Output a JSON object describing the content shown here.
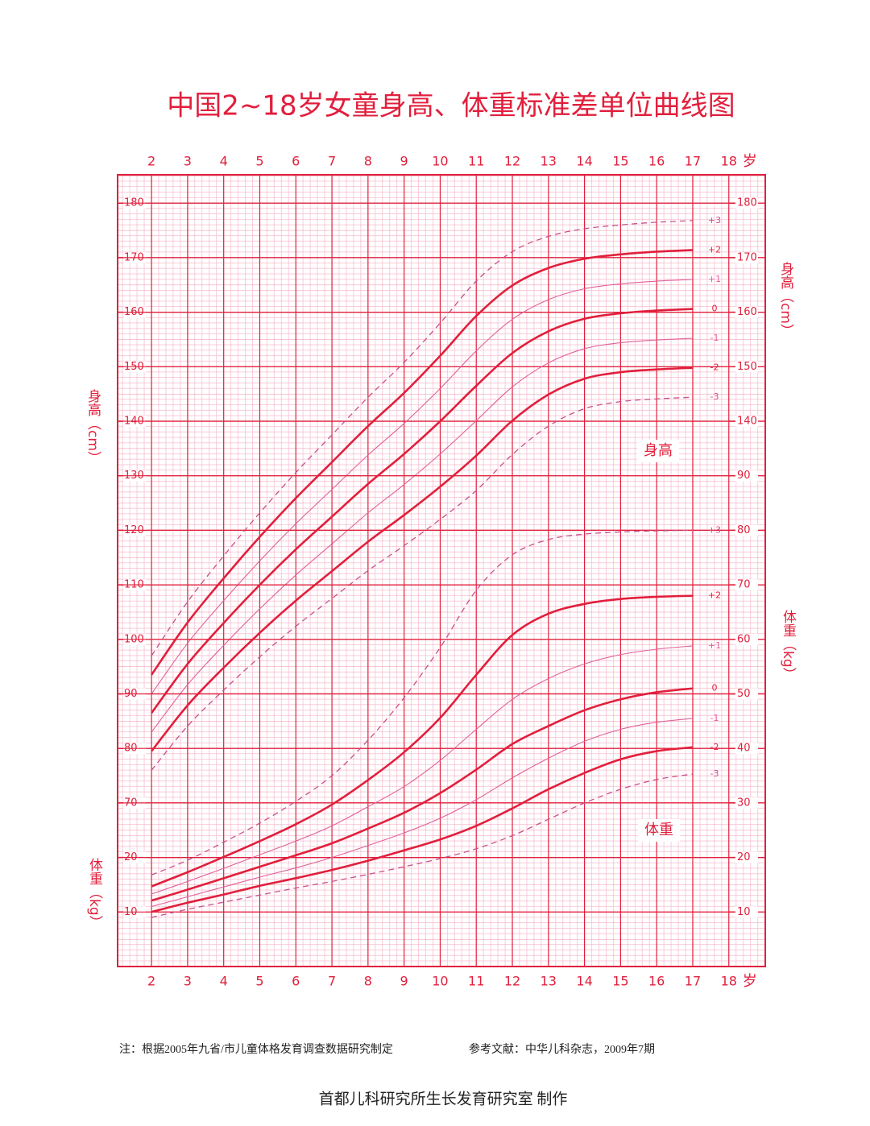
{
  "chart_data": [
    {
      "type": "line",
      "title": "中国2~18岁女童身高、体重标准差单位曲线图",
      "ylabel": "身高（cm）",
      "xlabel": "岁",
      "annotation": "身高",
      "xlim": [
        1.06,
        19.01
      ],
      "xticks": [
        2,
        3,
        4,
        5,
        6,
        7,
        8,
        9,
        10,
        11,
        12,
        13,
        14,
        15,
        16,
        17,
        18
      ],
      "ylim": [
        40,
        185.2
      ],
      "yticks": [
        70,
        80,
        90,
        100,
        110,
        120,
        130,
        140,
        150,
        160,
        170,
        180
      ],
      "yticks_right": [
        140,
        150,
        160,
        170,
        180
      ],
      "grid": true,
      "x": [
        2,
        3,
        4,
        5,
        6,
        7,
        8,
        9,
        10,
        11,
        12,
        13,
        14,
        15,
        16,
        17
      ],
      "series": [
        {
          "name": "+3",
          "color": "#c8508c",
          "style": "dashed",
          "values": [
            97.0,
            106.9,
            115.3,
            123.2,
            130.6,
            137.5,
            144.4,
            150.8,
            158.0,
            165.7,
            171.1,
            173.9,
            175.3,
            176.0,
            176.5,
            176.8
          ]
        },
        {
          "name": "+2",
          "color": "#e11f3c",
          "style": "thick",
          "values": [
            93.5,
            103.1,
            111.2,
            118.8,
            125.9,
            132.5,
            139.1,
            145.2,
            152.0,
            159.3,
            164.9,
            168.1,
            169.8,
            170.6,
            171.1,
            171.4
          ]
        },
        {
          "name": "+1",
          "color": "#e0609a",
          "style": "thin",
          "values": [
            90.0,
            99.3,
            107.1,
            114.4,
            121.2,
            127.5,
            133.8,
            139.6,
            146.0,
            152.9,
            158.7,
            162.3,
            164.3,
            165.2,
            165.7,
            166.0
          ]
        },
        {
          "name": "0",
          "color": "#e11f3c",
          "style": "thick",
          "values": [
            86.5,
            95.5,
            103.0,
            110.0,
            116.5,
            122.5,
            128.5,
            134.0,
            140.0,
            146.5,
            152.5,
            156.5,
            158.8,
            159.8,
            160.3,
            160.6
          ]
        },
        {
          "name": "-1",
          "color": "#e0609a",
          "style": "thin",
          "values": [
            83.0,
            91.7,
            98.9,
            105.6,
            111.8,
            117.5,
            123.2,
            128.4,
            134.0,
            140.1,
            146.3,
            150.7,
            153.3,
            154.4,
            154.9,
            155.2
          ]
        },
        {
          "name": "-2",
          "color": "#e11f3c",
          "style": "thick",
          "values": [
            79.5,
            87.9,
            94.8,
            101.2,
            107.1,
            112.5,
            117.9,
            122.8,
            128.0,
            133.7,
            140.1,
            144.9,
            147.8,
            149.0,
            149.5,
            149.8
          ]
        },
        {
          "name": "-3",
          "color": "#c8508c",
          "style": "dashed",
          "values": [
            76.0,
            84.1,
            90.7,
            96.8,
            102.4,
            107.5,
            112.6,
            117.2,
            122.0,
            127.3,
            133.9,
            139.1,
            142.3,
            143.6,
            144.1,
            144.4
          ]
        }
      ]
    },
    {
      "type": "line",
      "ylabel": "体重（kg）",
      "annotation": "体重",
      "xlim": [
        1.06,
        19.01
      ],
      "ylim": [
        0,
        145.2
      ],
      "yticks": [
        10,
        20
      ],
      "yticks_right": [
        10,
        20,
        30,
        40,
        50,
        60,
        70,
        80,
        90
      ],
      "grid": true,
      "x": [
        2,
        3,
        4,
        5,
        6,
        7,
        8,
        9,
        10,
        11,
        12,
        13,
        14,
        15,
        16,
        17
      ],
      "series": [
        {
          "name": "+3",
          "color": "#c8508c",
          "style": "dashed",
          "values": [
            16.8,
            19.5,
            22.8,
            26.3,
            30.3,
            35.0,
            41.5,
            49.3,
            58.5,
            69.0,
            75.5,
            78.3,
            79.3,
            79.7,
            79.9,
            80.0
          ]
        },
        {
          "name": "+2",
          "color": "#e11f3c",
          "style": "thick",
          "values": [
            14.7,
            17.3,
            20.1,
            23.0,
            26.1,
            29.7,
            34.2,
            39.3,
            45.6,
            53.5,
            60.8,
            64.7,
            66.5,
            67.4,
            67.8,
            68.0
          ]
        },
        {
          "name": "+1",
          "color": "#e0609a",
          "style": "thin",
          "values": [
            13.3,
            15.6,
            18.0,
            20.5,
            23.0,
            25.8,
            29.3,
            33.0,
            37.8,
            43.5,
            49.0,
            52.8,
            55.5,
            57.2,
            58.2,
            58.8
          ]
        },
        {
          "name": "0",
          "color": "#e11f3c",
          "style": "thick",
          "values": [
            12.1,
            14.1,
            16.2,
            18.3,
            20.4,
            22.6,
            25.3,
            28.2,
            31.8,
            36.1,
            40.8,
            44.1,
            47.0,
            49.0,
            50.3,
            51.0
          ]
        },
        {
          "name": "-1",
          "color": "#e0609a",
          "style": "thin",
          "values": [
            11.0,
            12.8,
            14.6,
            16.4,
            18.1,
            20.0,
            22.2,
            24.5,
            27.2,
            30.6,
            34.6,
            38.2,
            41.3,
            43.5,
            44.8,
            45.5
          ]
        },
        {
          "name": "-2",
          "color": "#e11f3c",
          "style": "thick",
          "values": [
            10.0,
            11.7,
            13.2,
            14.8,
            16.2,
            17.7,
            19.4,
            21.3,
            23.3,
            25.8,
            29.0,
            32.5,
            35.5,
            38.0,
            39.5,
            40.2
          ]
        },
        {
          "name": "-3",
          "color": "#c8508c",
          "style": "dashed",
          "values": [
            9.0,
            10.5,
            11.8,
            13.1,
            14.4,
            15.6,
            16.9,
            18.3,
            19.8,
            21.6,
            24.0,
            27.0,
            30.0,
            32.5,
            34.3,
            35.3
          ]
        }
      ]
    }
  ],
  "footer": {
    "note": "注：根据2005年九省/市儿童体格发育调查数据研究制定",
    "reference": "参考文献：中华儿科杂志，2009年7期",
    "credit": "首都儿科研究所生长发育研究室 制作"
  }
}
